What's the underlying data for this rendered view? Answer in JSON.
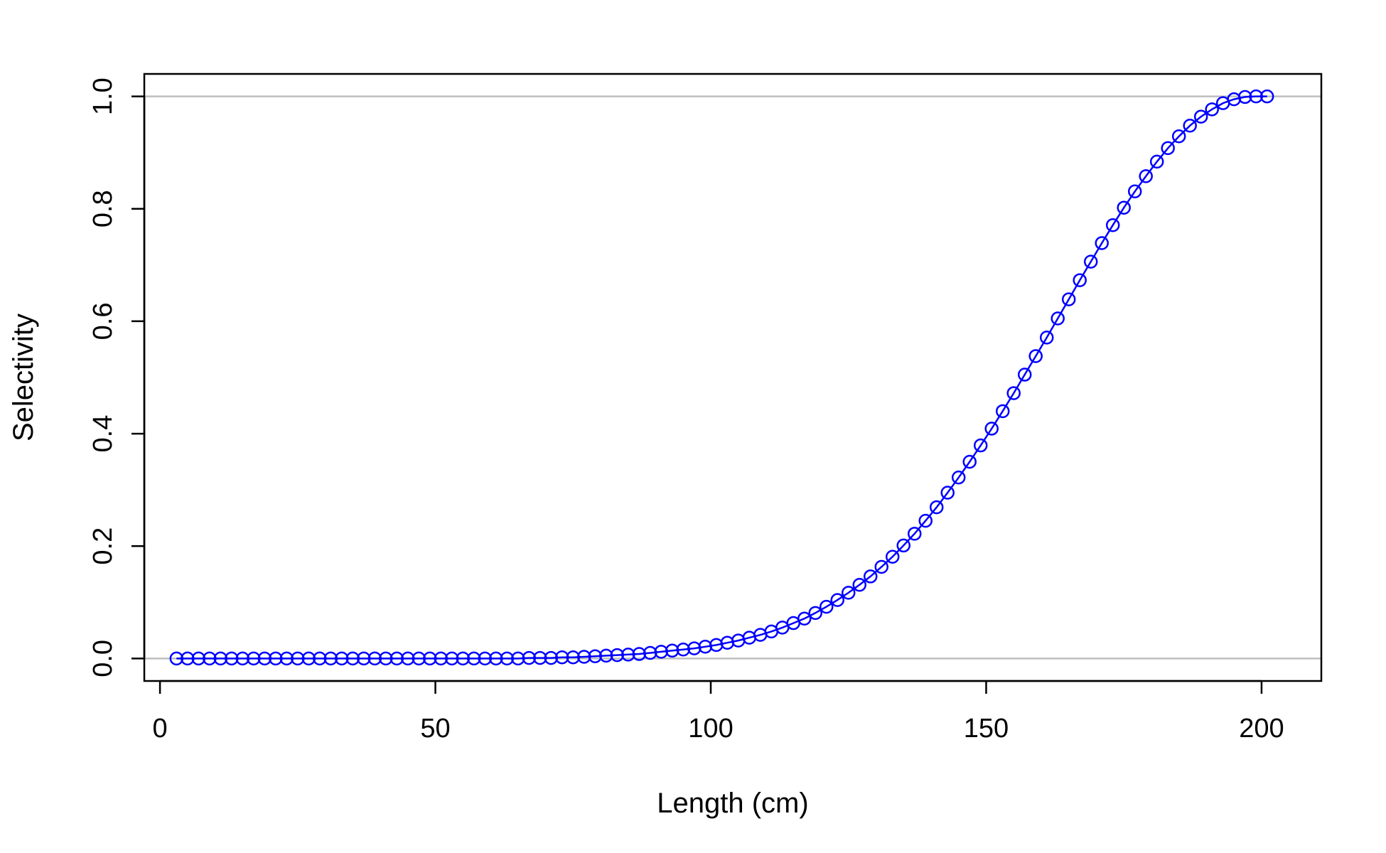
{
  "chart_data": {
    "type": "line",
    "title": "",
    "xlabel": "Length (cm)",
    "ylabel": "Selectivity",
    "xlim": [
      -2.85,
      210.85
    ],
    "ylim": [
      -0.04,
      1.04
    ],
    "x_ticks": [
      0,
      50,
      100,
      150,
      200
    ],
    "x_tick_labels": [
      "0",
      "50",
      "100",
      "150",
      "200"
    ],
    "y_ticks": [
      0.0,
      0.2,
      0.4,
      0.6,
      0.8,
      1.0
    ],
    "y_tick_labels": [
      "0.0",
      "0.2",
      "0.4",
      "0.6",
      "0.8",
      "1.0"
    ],
    "reference_lines_y": [
      0,
      1
    ],
    "grid": false,
    "legend": "none",
    "colors": {
      "series": "#0000ff",
      "reference": "#bebebe",
      "axes": "#000000"
    },
    "series": [
      {
        "marker": "open-circle",
        "x": [
          3,
          5,
          7,
          9,
          11,
          13,
          15,
          17,
          19,
          21,
          23,
          25,
          27,
          29,
          31,
          33,
          35,
          37,
          39,
          41,
          43,
          45,
          47,
          49,
          51,
          53,
          55,
          57,
          59,
          61,
          63,
          65,
          67,
          69,
          71,
          73,
          75,
          77,
          79,
          81,
          83,
          85,
          87,
          89,
          91,
          93,
          95,
          97,
          99,
          101,
          103,
          105,
          107,
          109,
          111,
          113,
          115,
          117,
          119,
          121,
          123,
          125,
          127,
          129,
          131,
          133,
          135,
          137,
          139,
          141,
          143,
          145,
          147,
          149,
          151,
          153,
          155,
          157,
          159,
          161,
          163,
          165,
          167,
          169,
          171,
          173,
          175,
          177,
          179,
          181,
          183,
          185,
          187,
          189,
          191,
          193,
          195,
          197,
          199,
          201
        ],
        "values": [
          0.0,
          0.0,
          0.0,
          0.0,
          0.0,
          0.0,
          0.0,
          0.0,
          0.0,
          0.0,
          0.0,
          0.0,
          0.0,
          0.0,
          0.0,
          0.0,
          0.0,
          0.0,
          0.0,
          0.0,
          0.0,
          0.0,
          0.0,
          0.0,
          0.0,
          0.0,
          0.0,
          0.0,
          0.0,
          0.0,
          0.0,
          0.0,
          0.001,
          0.001,
          0.001,
          0.002,
          0.002,
          0.003,
          0.004,
          0.005,
          0.006,
          0.007,
          0.008,
          0.01,
          0.012,
          0.014,
          0.016,
          0.018,
          0.021,
          0.024,
          0.028,
          0.032,
          0.037,
          0.042,
          0.048,
          0.055,
          0.063,
          0.071,
          0.081,
          0.092,
          0.104,
          0.117,
          0.131,
          0.146,
          0.163,
          0.181,
          0.201,
          0.222,
          0.245,
          0.269,
          0.295,
          0.322,
          0.35,
          0.379,
          0.409,
          0.44,
          0.472,
          0.505,
          0.538,
          0.571,
          0.605,
          0.639,
          0.673,
          0.706,
          0.739,
          0.771,
          0.802,
          0.831,
          0.858,
          0.884,
          0.908,
          0.929,
          0.948,
          0.964,
          0.977,
          0.988,
          0.995,
          0.999,
          1.0,
          1.0
        ]
      }
    ]
  }
}
